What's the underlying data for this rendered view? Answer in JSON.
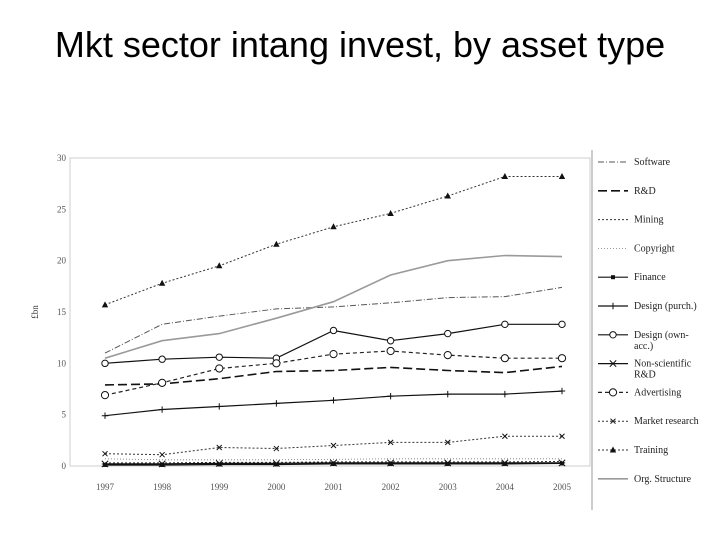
{
  "slide": {
    "title": "Mkt sector intang invest, by asset type"
  },
  "chart_data": {
    "type": "line",
    "title": "",
    "ylabel": "£bn",
    "xlabel": "",
    "ylim": [
      0,
      30
    ],
    "yticks": [
      "0",
      "5",
      "10",
      "15",
      "20",
      "25",
      "30"
    ],
    "categories": [
      "1997",
      "1998",
      "1999",
      "2000",
      "2001",
      "2002",
      "2003",
      "2004",
      "2005"
    ],
    "grid": false,
    "legend": "right",
    "series": [
      {
        "name": "Software",
        "style": "dashdot",
        "marker": "none",
        "values": [
          11.0,
          13.8,
          14.6,
          15.3,
          15.5,
          15.9,
          16.4,
          16.5,
          17.4
        ]
      },
      {
        "name": "R&D",
        "style": "longdash",
        "marker": "none",
        "values": [
          7.9,
          8.0,
          8.5,
          9.2,
          9.3,
          9.6,
          9.3,
          9.1,
          9.7
        ]
      },
      {
        "name": "Mining",
        "style": "dotted",
        "marker": "none",
        "values": [
          0.3,
          0.3,
          0.35,
          0.35,
          0.4,
          0.4,
          0.4,
          0.4,
          0.45
        ]
      },
      {
        "name": "Copyright",
        "style": "finedot",
        "marker": "none",
        "values": [
          0.7,
          0.6,
          0.6,
          0.6,
          0.65,
          0.7,
          0.7,
          0.7,
          0.7
        ]
      },
      {
        "name": "Finance",
        "style": "solid",
        "marker": "square",
        "values": [
          0.1,
          0.1,
          0.15,
          0.15,
          0.2,
          0.2,
          0.2,
          0.2,
          0.25
        ]
      },
      {
        "name": "Design (purch.)",
        "style": "solid",
        "marker": "plus",
        "values": [
          4.9,
          5.5,
          5.8,
          6.1,
          6.4,
          6.8,
          7.0,
          7.0,
          7.3
        ]
      },
      {
        "name": "Design (own-acc.)",
        "style": "solid",
        "marker": "diamond",
        "values": [
          10.0,
          10.4,
          10.6,
          10.5,
          13.2,
          12.2,
          12.9,
          13.8,
          13.8
        ]
      },
      {
        "name": "Non-scientific R&D",
        "style": "solid",
        "marker": "star",
        "values": [
          0.2,
          0.2,
          0.25,
          0.25,
          0.3,
          0.3,
          0.3,
          0.3,
          0.3
        ]
      },
      {
        "name": "Advertising",
        "style": "shortdash",
        "marker": "circle",
        "values": [
          6.9,
          8.1,
          9.5,
          10.0,
          10.9,
          11.2,
          10.8,
          10.5,
          10.5
        ]
      },
      {
        "name": "Market research",
        "style": "dotted",
        "marker": "x",
        "values": [
          1.2,
          1.1,
          1.8,
          1.7,
          2.0,
          2.3,
          2.3,
          2.9,
          2.9
        ]
      },
      {
        "name": "Training",
        "style": "dotted",
        "marker": "triangle",
        "values": [
          15.7,
          17.8,
          19.5,
          21.6,
          23.3,
          24.6,
          26.3,
          28.2,
          28.2
        ]
      },
      {
        "name": "Org. Structure",
        "style": "grey",
        "marker": "none",
        "values": [
          10.5,
          12.2,
          12.9,
          14.4,
          16.0,
          18.6,
          20.0,
          20.5,
          20.4
        ]
      }
    ],
    "legend_labels": [
      [
        "Software"
      ],
      [
        "R&D"
      ],
      [
        "Mining"
      ],
      [
        "Copyright"
      ],
      [
        "Finance"
      ],
      [
        "Design (purch.)"
      ],
      [
        "Design (own-",
        "acc.)"
      ],
      [
        "Non-scientific",
        "R&D"
      ],
      [
        "Advertising"
      ],
      [
        "Market research"
      ],
      [
        "Training"
      ],
      [
        "Org. Structure"
      ]
    ]
  }
}
